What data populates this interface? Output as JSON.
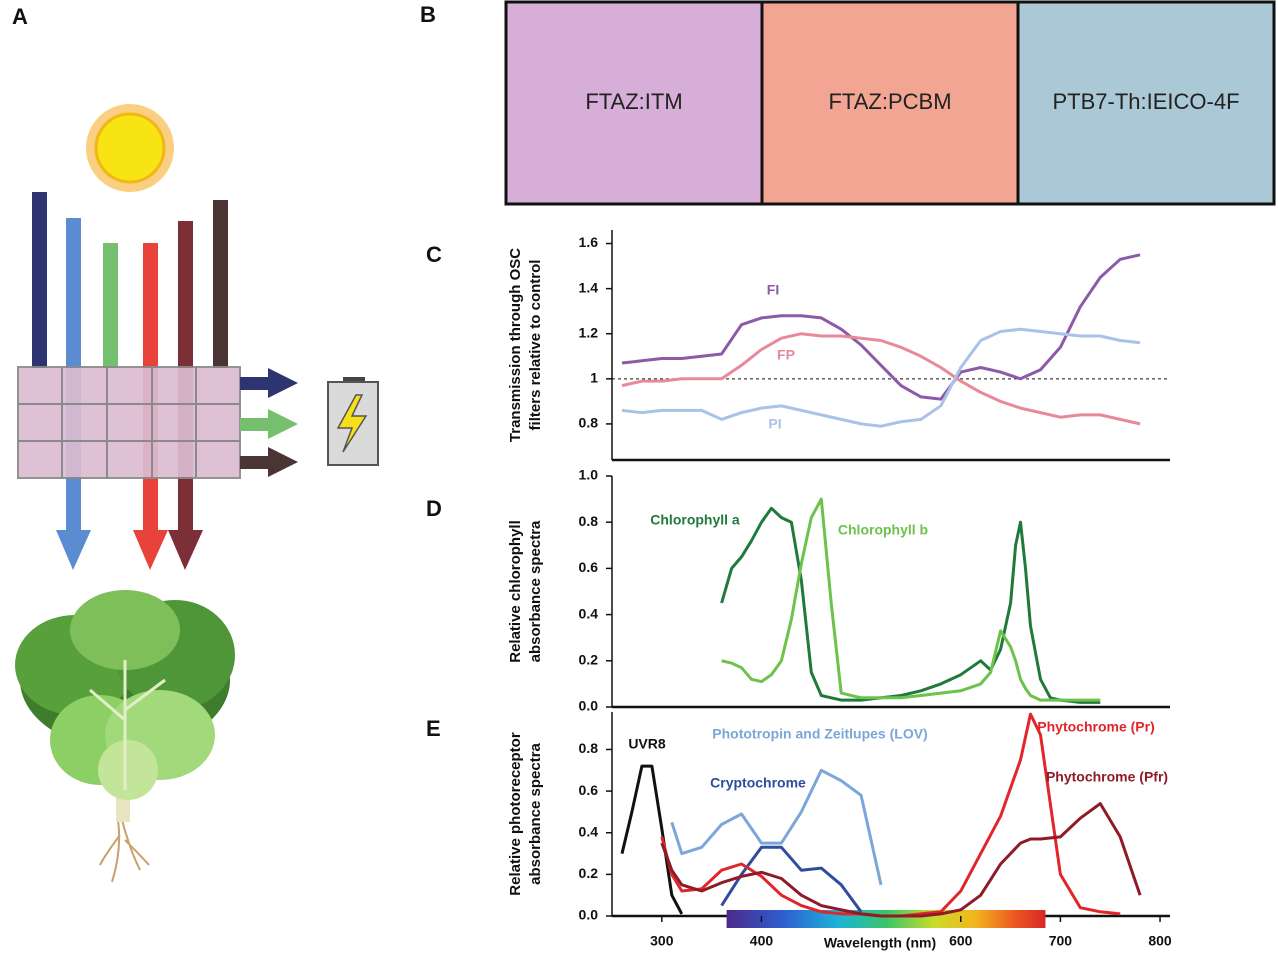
{
  "panel_labels": [
    "A",
    "B",
    "C",
    "D",
    "E"
  ],
  "swatches": [
    {
      "label": "FTAZ:ITM",
      "color": "#d7aed8"
    },
    {
      "label": "FTAZ:PCBM",
      "color": "#f2a593"
    },
    {
      "label": "PTB7-Th:IEICO-4F",
      "color": "#aac8d6"
    }
  ],
  "chart_data": [
    {
      "type": "line",
      "ylabel": [
        "Transmission through OSC",
        "filters relative to control"
      ],
      "xlim": [
        250,
        810
      ],
      "ylim": [
        0.64,
        1.66
      ],
      "yticks": [
        0.8,
        1,
        1.2,
        1.4,
        1.6
      ],
      "reference_line": 1,
      "x": [
        260,
        280,
        300,
        320,
        340,
        360,
        380,
        400,
        420,
        440,
        460,
        480,
        500,
        520,
        540,
        560,
        580,
        600,
        620,
        640,
        660,
        680,
        700,
        720,
        740,
        760,
        780
      ],
      "series": [
        {
          "name": "FI",
          "color": "#8d5aa8",
          "values": [
            1.07,
            1.08,
            1.09,
            1.09,
            1.1,
            1.11,
            1.24,
            1.27,
            1.28,
            1.28,
            1.27,
            1.22,
            1.15,
            1.06,
            0.97,
            0.92,
            0.91,
            1.03,
            1.05,
            1.03,
            1.0,
            1.04,
            1.14,
            1.32,
            1.45,
            1.53,
            1.55
          ]
        },
        {
          "name": "FP",
          "color": "#e8899b",
          "values": [
            0.97,
            0.99,
            0.99,
            1.0,
            1.0,
            1.0,
            1.06,
            1.13,
            1.18,
            1.2,
            1.19,
            1.19,
            1.18,
            1.17,
            1.14,
            1.1,
            1.05,
            0.99,
            0.94,
            0.9,
            0.87,
            0.85,
            0.83,
            0.84,
            0.84,
            0.82,
            0.8
          ]
        },
        {
          "name": "PI",
          "color": "#abc2e8",
          "values": [
            0.86,
            0.85,
            0.86,
            0.86,
            0.86,
            0.82,
            0.85,
            0.87,
            0.88,
            0.86,
            0.84,
            0.82,
            0.8,
            0.79,
            0.81,
            0.82,
            0.88,
            1.05,
            1.17,
            1.21,
            1.22,
            1.21,
            1.2,
            1.19,
            1.19,
            1.17,
            1.16
          ]
        }
      ]
    },
    {
      "type": "line",
      "ylabel": [
        "Relative chlorophyll",
        "absorbance spectra"
      ],
      "xlim": [
        250,
        810
      ],
      "ylim": [
        0,
        1.0
      ],
      "yticks": [
        {
          "value": 0,
          "label": "0.0"
        },
        0.2,
        0.4,
        0.6,
        0.8,
        {
          "value": 1,
          "label": "1.0"
        }
      ],
      "x": [
        350,
        360,
        370,
        380,
        390,
        400,
        410,
        420,
        430,
        440,
        450,
        460,
        470,
        480,
        500,
        520,
        540,
        560,
        580,
        600,
        620,
        630,
        640,
        650,
        655,
        660,
        665,
        670,
        680,
        690,
        700,
        720,
        740
      ],
      "series": [
        {
          "name": "Chlorophyll a",
          "color": "#1f7a3b",
          "values": [
            null,
            0.45,
            0.6,
            0.65,
            0.72,
            0.8,
            0.86,
            0.82,
            0.8,
            0.55,
            0.15,
            0.05,
            0.04,
            0.03,
            0.03,
            0.04,
            0.05,
            0.07,
            0.1,
            0.14,
            0.2,
            0.16,
            0.25,
            0.45,
            0.7,
            0.8,
            0.6,
            0.35,
            0.12,
            0.04,
            0.03,
            0.02,
            0.02
          ]
        },
        {
          "name": "Chlorophyll b",
          "color": "#6cc24a",
          "values": [
            null,
            0.2,
            0.19,
            0.17,
            0.12,
            0.11,
            0.14,
            0.2,
            0.38,
            0.62,
            0.82,
            0.9,
            0.45,
            0.06,
            0.04,
            0.04,
            0.04,
            0.05,
            0.06,
            0.07,
            0.1,
            0.15,
            0.33,
            0.26,
            0.2,
            0.12,
            0.08,
            0.05,
            0.03,
            0.03,
            0.03,
            0.03,
            0.03
          ]
        }
      ]
    },
    {
      "type": "line",
      "ylabel": [
        "Relative photoreceptor",
        "absorbance spectra"
      ],
      "xlabel": "Wavelength (nm)",
      "xlim": [
        250,
        810
      ],
      "ylim": [
        0,
        0.98
      ],
      "xticks": [
        300,
        400,
        600,
        700,
        800
      ],
      "yticks": [
        {
          "value": 0,
          "label": "0.0"
        },
        0.2,
        0.4,
        0.6,
        0.8
      ],
      "colorbar": [
        365,
        685
      ],
      "x": [
        260,
        270,
        280,
        290,
        300,
        310,
        320,
        340,
        360,
        380,
        400,
        420,
        440,
        460,
        480,
        500,
        520,
        540,
        560,
        580,
        600,
        620,
        640,
        660,
        670,
        680,
        700,
        720,
        740,
        760,
        780
      ],
      "series": [
        {
          "name": "UVR8",
          "color": "#111111",
          "values": [
            0.3,
            0.5,
            0.72,
            0.72,
            0.42,
            0.1,
            0.01,
            null,
            null,
            null,
            null,
            null,
            null,
            null,
            null,
            null,
            null,
            null,
            null,
            null,
            null,
            null,
            null,
            null,
            null,
            null,
            null,
            null,
            null,
            null,
            null
          ]
        },
        {
          "name": "Phototropin and Zeitlupes (LOV)",
          "color": "#7ba6d9",
          "values": [
            null,
            null,
            null,
            null,
            null,
            0.45,
            0.3,
            0.33,
            0.44,
            0.49,
            0.35,
            0.35,
            0.5,
            0.7,
            0.65,
            0.58,
            0.15,
            null,
            null,
            null,
            null,
            null,
            null,
            null,
            null,
            null,
            null,
            null,
            null,
            null,
            null
          ]
        },
        {
          "name": "Cryptochrome",
          "color": "#2f4c9e",
          "values": [
            null,
            null,
            null,
            null,
            null,
            null,
            null,
            null,
            0.05,
            0.2,
            0.33,
            0.33,
            0.22,
            0.23,
            0.15,
            0.02,
            null,
            null,
            null,
            null,
            null,
            null,
            null,
            null,
            null,
            null,
            null,
            null,
            null,
            null,
            null
          ]
        },
        {
          "name": "Phytochrome (Pr)",
          "color": "#e1262b",
          "values": [
            null,
            null,
            null,
            null,
            0.38,
            0.2,
            0.12,
            0.13,
            0.22,
            0.25,
            0.19,
            0.1,
            0.05,
            0.02,
            0.01,
            0.01,
            0,
            0,
            0.01,
            0.02,
            0.12,
            0.3,
            0.48,
            0.75,
            0.97,
            0.87,
            0.2,
            0.04,
            0.02,
            0.01,
            null
          ]
        },
        {
          "name": "Phytochrome (Pfr)",
          "color": "#8f1b26",
          "values": [
            null,
            null,
            null,
            null,
            0.35,
            0.22,
            0.15,
            0.12,
            0.16,
            0.19,
            0.21,
            0.18,
            0.1,
            0.05,
            0.03,
            0.01,
            0,
            0,
            0,
            0.01,
            0.03,
            0.1,
            0.25,
            0.35,
            0.37,
            0.37,
            0.38,
            0.47,
            0.54,
            0.38,
            0.1
          ]
        }
      ]
    }
  ]
}
